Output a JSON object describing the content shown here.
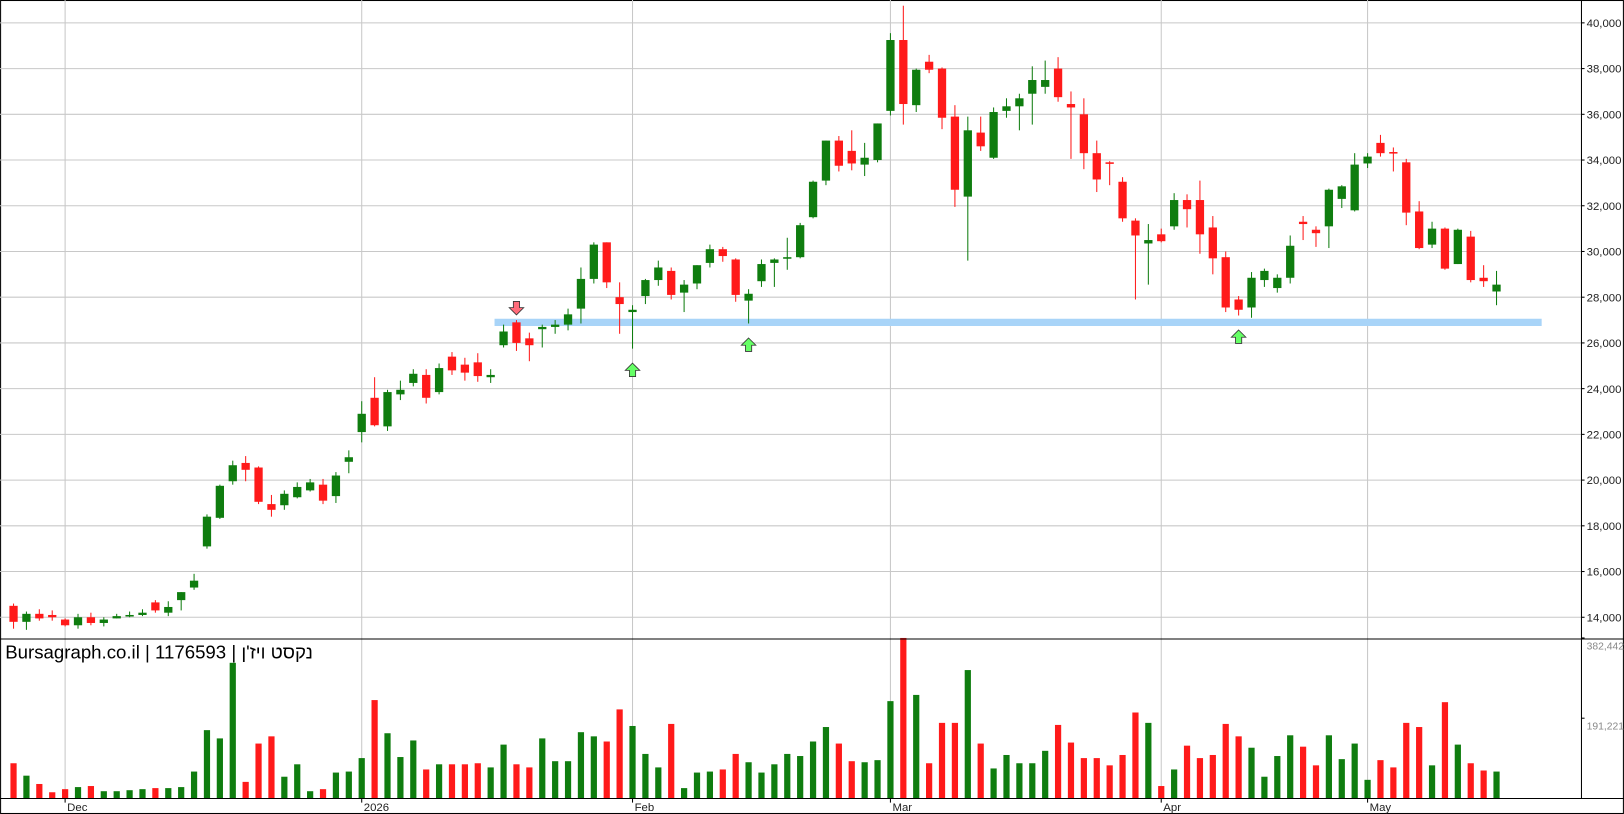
{
  "chart_data": {
    "type": "candlestick",
    "title": "Bursagraph.co.il | 1176593 | נקסט ויז'ן",
    "categories": [
      null,
      null,
      null,
      null,
      "Dec",
      null,
      null,
      null,
      null,
      null,
      null,
      null,
      null,
      null,
      null,
      null,
      null,
      null,
      null,
      null,
      null,
      null,
      null,
      null,
      null,
      null,
      null,
      "2026",
      null,
      null,
      null,
      null,
      null,
      null,
      null,
      null,
      null,
      null,
      null,
      null,
      null,
      null,
      null,
      null,
      null,
      null,
      null,
      null,
      "Feb",
      null,
      null,
      null,
      null,
      null,
      null,
      null,
      null,
      null,
      null,
      null,
      null,
      null,
      null,
      null,
      null,
      null,
      null,
      null,
      "Mar",
      null,
      null,
      null,
      null,
      null,
      null,
      null,
      null,
      null,
      null,
      null,
      null,
      null,
      null,
      null,
      null,
      null,
      null,
      null,
      null,
      "Apr",
      null,
      null,
      null,
      null,
      null,
      null,
      null,
      null,
      null,
      null,
      null,
      null,
      null,
      null,
      null,
      "May",
      null,
      null,
      null,
      null,
      null,
      null,
      null,
      null,
      null,
      null
    ],
    "open": [
      14500,
      13800,
      14150,
      14100,
      13900,
      13650,
      14000,
      13750,
      13950,
      14050,
      14100,
      14650,
      14200,
      14750,
      15300,
      17100,
      18350,
      19950,
      20750,
      20550,
      18950,
      18900,
      19250,
      19550,
      19800,
      19300,
      20800,
      22100,
      23600,
      22350,
      23750,
      24250,
      24600,
      23850,
      25400,
      25050,
      25150,
      24500,
      25900,
      26900,
      26200,
      26600,
      26700,
      26800,
      27500,
      28800,
      30400,
      28000,
      27350,
      28050,
      28750,
      29150,
      28200,
      28600,
      29500,
      30100,
      29650,
      27850,
      28700,
      29500,
      29700,
      29750,
      31500,
      33100,
      34850,
      34400,
      33800,
      34000,
      36150,
      39250,
      36400,
      38300,
      38000,
      35900,
      32400,
      35200,
      34100,
      36150,
      36350,
      36900,
      37200,
      38000,
      36450,
      36000,
      34300,
      33900,
      33050,
      31350,
      30350,
      30750,
      31100,
      32250,
      32250,
      31050,
      29750,
      27900,
      27550,
      28750,
      28400,
      28850,
      31300,
      30950,
      31100,
      32300,
      31800,
      33850,
      34750,
      34350,
      33900,
      31750,
      30300,
      31000,
      29450,
      30650,
      28850,
      28250
    ],
    "high": [
      14600,
      14250,
      14350,
      14300,
      13950,
      14150,
      14200,
      14000,
      14150,
      14250,
      14350,
      14750,
      14700,
      15100,
      15900,
      18500,
      19800,
      20850,
      21050,
      20600,
      19350,
      19550,
      19900,
      20050,
      20050,
      20350,
      21300,
      23450,
      24500,
      23950,
      24350,
      24850,
      24850,
      25100,
      25600,
      25350,
      25550,
      24850,
      26800,
      27000,
      26450,
      26800,
      27000,
      27500,
      29300,
      30400,
      30400,
      28650,
      27650,
      28800,
      29600,
      29300,
      28750,
      29400,
      30300,
      30200,
      29700,
      28350,
      29650,
      29700,
      30600,
      31250,
      33100,
      34850,
      35050,
      35300,
      34750,
      35600,
      39550,
      40750,
      38000,
      38600,
      38050,
      36400,
      35900,
      35900,
      36300,
      36700,
      36900,
      38100,
      38350,
      38500,
      37000,
      36700,
      34850,
      33950,
      33250,
      31450,
      31200,
      31000,
      32550,
      32500,
      33100,
      31550,
      30000,
      28050,
      29100,
      29250,
      29000,
      30700,
      31550,
      31100,
      32750,
      32900,
      34300,
      34300,
      35100,
      34550,
      34050,
      32200,
      31300,
      31050,
      31000,
      30900,
      29400,
      29150
    ],
    "low": [
      13500,
      13450,
      13850,
      13850,
      13600,
      13500,
      13650,
      13600,
      13950,
      14000,
      14050,
      14200,
      14050,
      14300,
      15200,
      17000,
      18300,
      19800,
      19950,
      18950,
      18400,
      18700,
      19200,
      19500,
      18950,
      19000,
      20300,
      21650,
      22350,
      22150,
      23500,
      24100,
      23350,
      23750,
      24600,
      24350,
      24300,
      24250,
      25800,
      25650,
      25200,
      25800,
      26400,
      26550,
      26850,
      28600,
      28400,
      26400,
      25750,
      27700,
      28500,
      27900,
      27350,
      28350,
      29300,
      29550,
      27800,
      26850,
      28450,
      28450,
      29200,
      29700,
      31450,
      32900,
      33500,
      33550,
      33300,
      33900,
      35950,
      35550,
      36100,
      37800,
      35350,
      31950,
      29600,
      34400,
      34050,
      35850,
      35300,
      35550,
      36900,
      36550,
      34050,
      33600,
      32600,
      32900,
      31300,
      27900,
      28550,
      30400,
      30950,
      31050,
      29900,
      29000,
      27350,
      27200,
      27100,
      28450,
      28200,
      28600,
      30500,
      30200,
      30150,
      31900,
      31750,
      33650,
      34150,
      33500,
      31150,
      30100,
      30150,
      29200,
      29450,
      28650,
      28450,
      27650
    ],
    "close": [
      13800,
      14150,
      13950,
      14000,
      13650,
      14000,
      13750,
      13900,
      14050,
      14100,
      14200,
      14300,
      14450,
      15100,
      15600,
      18400,
      19750,
      20650,
      20450,
      19050,
      18700,
      19400,
      19700,
      19900,
      19100,
      20200,
      21000,
      22900,
      22400,
      23850,
      23950,
      24650,
      23600,
      24900,
      24800,
      24700,
      24550,
      24600,
      26500,
      26000,
      25900,
      26700,
      26800,
      27250,
      28800,
      30300,
      28650,
      27700,
      27450,
      28750,
      29300,
      28100,
      28550,
      29400,
      30100,
      29800,
      28100,
      28150,
      29450,
      29650,
      29750,
      31150,
      33050,
      34850,
      33750,
      33850,
      34100,
      35600,
      39250,
      36450,
      37950,
      37950,
      35850,
      32700,
      35300,
      34600,
      36100,
      36350,
      36700,
      37500,
      37500,
      36750,
      36300,
      34300,
      33150,
      33850,
      31450,
      30700,
      30500,
      30450,
      32250,
      31850,
      30750,
      29700,
      27550,
      27450,
      28850,
      29150,
      28850,
      30250,
      31200,
      30800,
      32700,
      32850,
      33800,
      34150,
      34300,
      34300,
      31700,
      30150,
      31000,
      29250,
      30950,
      28750,
      28700,
      28550
    ],
    "volume": [
      83900,
      54300,
      34500,
      14800,
      22200,
      27100,
      29600,
      17300,
      17300,
      19700,
      22200,
      24700,
      24700,
      27100,
      64100,
      162800,
      143100,
      323200,
      39500,
      130800,
      148000,
      51800,
      81400,
      17300,
      22200,
      61700,
      64100,
      96200,
      234400,
      155400,
      98700,
      138200,
      69100,
      81400,
      81400,
      81400,
      83900,
      74000,
      128300,
      81400,
      74000,
      143100,
      88800,
      88800,
      157900,
      148000,
      135700,
      212200,
      172700,
      106100,
      74000,
      177600,
      24700,
      61700,
      64100,
      69100,
      106100,
      86300,
      61700,
      81400,
      106100,
      101100,
      135700,
      170200,
      130800,
      88800,
      86300,
      91300,
      231900,
      382400,
      246700,
      83900,
      180100,
      180100,
      305900,
      130800,
      71500,
      103600,
      83900,
      83900,
      113500,
      175200,
      133200,
      96200,
      96200,
      78900,
      103600,
      204800,
      180100,
      29600,
      69100,
      125800,
      96200,
      103600,
      177600,
      148000,
      120900,
      51800,
      101100,
      150500,
      123400,
      78900,
      150500,
      93700,
      130800,
      44400,
      91300,
      74000,
      180100,
      170200,
      78900,
      229400,
      128300,
      83900,
      66600,
      64100
    ],
    "up_color": "#0f7d0f",
    "down_color": "#ff1a1a",
    "ylim": [
      13050,
      41000
    ],
    "yticks": [
      {
        "value": 14000,
        "label": "14,000"
      },
      {
        "value": 16000,
        "label": "16,000"
      },
      {
        "value": 18000,
        "label": "18,000"
      },
      {
        "value": 20000,
        "label": "20,000"
      },
      {
        "value": 22000,
        "label": "22,000"
      },
      {
        "value": 24000,
        "label": "24,000"
      },
      {
        "value": 26000,
        "label": "26,000"
      },
      {
        "value": 28000,
        "label": "28,000"
      },
      {
        "value": 30000,
        "label": "30,000"
      },
      {
        "value": 32000,
        "label": "32,000"
      },
      {
        "value": 34000,
        "label": "34,000"
      },
      {
        "value": 36000,
        "label": "36,000"
      },
      {
        "value": 38000,
        "label": "38,000"
      },
      {
        "value": 40000,
        "label": "40,000"
      }
    ],
    "volume_lim": [
      0,
      382442
    ],
    "volume_ticks": [
      {
        "value": 382442,
        "label": "382,442"
      },
      {
        "value": 191221,
        "label": "191,221"
      }
    ],
    "grid": true,
    "support": {
      "value": 26900,
      "color": "#a8d4f8"
    }
  }
}
